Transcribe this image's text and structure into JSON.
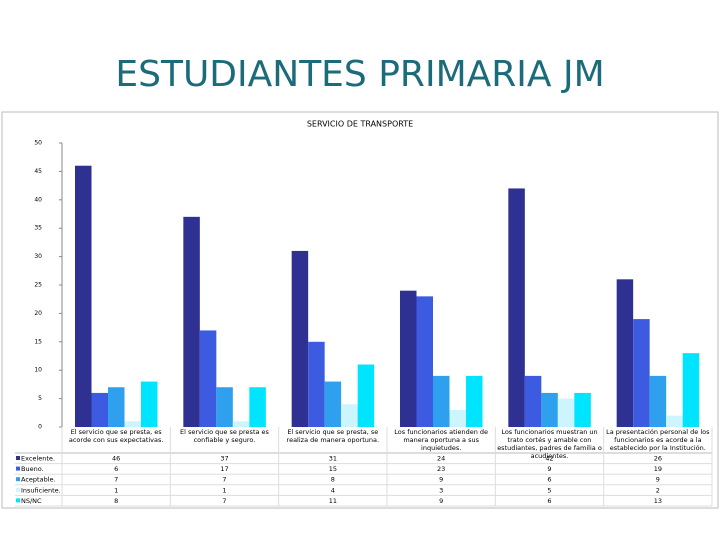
{
  "slide_title": "ESTUDIANTES PRIMARIA JM",
  "chart_data": {
    "type": "bar",
    "title": "SERVICIO DE TRANSPORTE",
    "categories": [
      "El servicio que se presta, es acorde con sus expectativas.",
      "El servicio que se presta es confiable y seguro.",
      "El servicio que se presta, se realiza de manera oportuna.",
      "Los funcionarios atienden de manera oportuna a sus inquietudes.",
      "Los funcionarios muestran un trato cortés y amable con estudiantes, padres de familia o acudientes.",
      "La presentación personal de los funcionarios es acorde a la establecido por la Institución."
    ],
    "series": [
      {
        "name": "Excelente.",
        "color": "#2e3192",
        "values": [
          46,
          37,
          31,
          24,
          42,
          26
        ]
      },
      {
        "name": "Bueno.",
        "color": "#3d5be0",
        "values": [
          6,
          17,
          15,
          23,
          9,
          19
        ]
      },
      {
        "name": "Aceptable.",
        "color": "#2fa0ee",
        "values": [
          7,
          7,
          8,
          9,
          6,
          9
        ]
      },
      {
        "name": "Insuficiente.",
        "color": "#ccf5ff",
        "values": [
          1,
          1,
          4,
          3,
          5,
          2
        ]
      },
      {
        "name": "NS/NC",
        "color": "#00e5ff",
        "values": [
          8,
          7,
          11,
          9,
          6,
          13
        ]
      }
    ],
    "ylim": [
      0,
      50
    ],
    "yticks": [
      0,
      5,
      10,
      15,
      20,
      25,
      30,
      35,
      40,
      45,
      50
    ],
    "grid": false
  }
}
